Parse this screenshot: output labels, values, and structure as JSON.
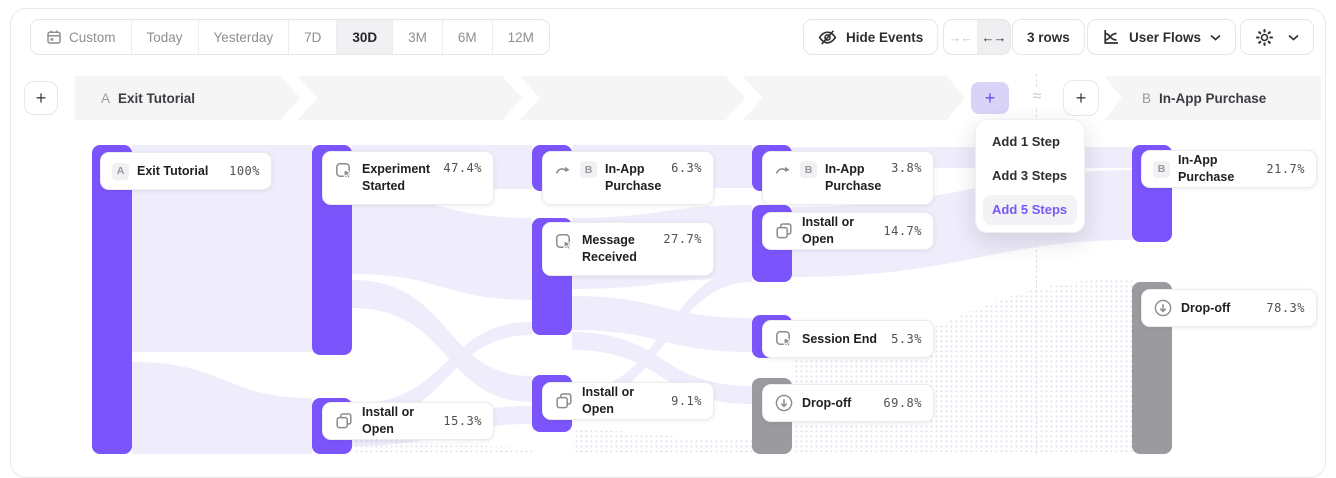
{
  "toolbar": {
    "date_ranges": [
      "Custom",
      "Today",
      "Yesterday",
      "7D",
      "30D",
      "3M",
      "6M",
      "12M"
    ],
    "selected_range": "30D",
    "hide_events_label": "Hide Events",
    "rows_label": "3 rows",
    "view_label": "User Flows",
    "collapse_glyph": "→←",
    "expand_glyph": "←→"
  },
  "flow_header": {
    "step_a_badge": "A",
    "step_a_label": "Exit Tutorial",
    "approx_symbol": "≈",
    "step_b_badge": "B",
    "step_b_label": "In-App Purchase",
    "add_step_left": "+",
    "add_step_accent": "+",
    "add_step_right": "+"
  },
  "add_step_menu": {
    "items": [
      "Add 1 Step",
      "Add 3 Steps",
      "Add 5 Steps"
    ],
    "active_item": "Add 5 Steps"
  },
  "flow": {
    "nodes": [
      {
        "id": "exit-tutorial",
        "badge": "A",
        "label": "Exit Tutorial",
        "value": "100%",
        "icon": null,
        "variant": "purple"
      },
      {
        "id": "experiment-started",
        "badge": null,
        "label": "Experiment Started",
        "value": "47.4%",
        "icon": "action-event-icon",
        "variant": "purple"
      },
      {
        "id": "install-or-open-1",
        "badge": null,
        "label": "Install or Open",
        "value": "15.3%",
        "icon": "install-icon",
        "variant": "purple"
      },
      {
        "id": "in-app-purchase-1",
        "badge": "B",
        "label": "In-App Purchase",
        "value": "6.3%",
        "icon": "jump-to-event-icon",
        "variant": "purple"
      },
      {
        "id": "message-received",
        "badge": null,
        "label": "Message Received",
        "value": "27.7%",
        "icon": "action-event-icon",
        "variant": "purple"
      },
      {
        "id": "install-or-open-2",
        "badge": null,
        "label": "Install or Open",
        "value": "9.1%",
        "icon": "install-icon",
        "variant": "purple"
      },
      {
        "id": "in-app-purchase-2",
        "badge": "B",
        "label": "In-App Purchase",
        "value": "3.8%",
        "icon": "jump-to-event-icon",
        "variant": "purple"
      },
      {
        "id": "install-or-open-3",
        "badge": null,
        "label": "Install or Open",
        "value": "14.7%",
        "icon": "install-icon",
        "variant": "purple"
      },
      {
        "id": "session-end",
        "badge": null,
        "label": "Session End",
        "value": "5.3%",
        "icon": "action-event-icon",
        "variant": "purple"
      },
      {
        "id": "drop-off-1",
        "badge": null,
        "label": "Drop-off",
        "value": "69.8%",
        "icon": "drop-off-icon",
        "variant": "gray"
      },
      {
        "id": "in-app-purchase-b",
        "badge": "B",
        "label": "In-App Purchase",
        "value": "21.7%",
        "icon": null,
        "variant": "purple"
      },
      {
        "id": "drop-off-2",
        "badge": null,
        "label": "Drop-off",
        "value": "78.3%",
        "icon": "drop-off-icon",
        "variant": "gray"
      }
    ]
  },
  "colors": {
    "accent_purple": "#7B55FB",
    "bar_gray": "#9B9B9F",
    "ribbon_lavender": "#EFECFB",
    "menu_active_text": "#7857F7",
    "band_gray": "#F5F5F6"
  }
}
